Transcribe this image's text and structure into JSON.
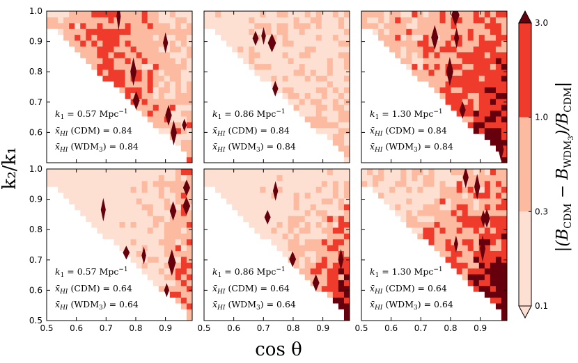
{
  "chart_data": {
    "type": "heatmap",
    "description_units": "cos theta vs k2/k1",
    "xlabel": "cos θ",
    "ylabel": "k₂/k₁",
    "xlim": [
      0.5,
      0.99
    ],
    "ylim": [
      0.5,
      1.0
    ],
    "xticks": [
      "0.5",
      "0.6",
      "0.7",
      "0.8",
      "0.9"
    ],
    "xtick_values": [
      0.5,
      0.6,
      0.7,
      0.8,
      0.9
    ],
    "yticks": [
      "0.5",
      "0.6",
      "0.7",
      "0.8",
      "0.9",
      "1.0"
    ],
    "ytick_values": [
      0.5,
      0.6,
      0.7,
      0.8,
      0.9,
      1.0
    ],
    "colorbar": {
      "label": "|(B_CDM − B_WDM₃)/B_CDM|",
      "label_main": "|(B",
      "label_sub1": "CDM",
      "label_mid": " − B",
      "label_sub2": "WDM",
      "label_sub3": "3",
      "label_end": ")/B",
      "label_sub4": "CDM",
      "label_close": "|",
      "tick_labels": [
        "0.1",
        "0.3",
        "1.0",
        "3.0"
      ],
      "levels": [
        0.1,
        0.3,
        1.0,
        3.0
      ],
      "colors": [
        "#fee0d2",
        "#fcbba1",
        "#ef3b2c",
        "#67000d"
      ],
      "extend": "both"
    },
    "panels": [
      {
        "row": 0,
        "col": 0,
        "k1": "0.57",
        "xHI_CDM": "0.84",
        "xHI_WDM3": "0.84"
      },
      {
        "row": 0,
        "col": 1,
        "k1": "0.86",
        "xHI_CDM": "0.84",
        "xHI_WDM3": "0.84"
      },
      {
        "row": 0,
        "col": 2,
        "k1": "1.30",
        "xHI_CDM": "0.84",
        "xHI_WDM3": "0.84"
      },
      {
        "row": 1,
        "col": 0,
        "k1": "0.57",
        "xHI_CDM": "0.64",
        "xHI_WDM3": "0.64"
      },
      {
        "row": 1,
        "col": 1,
        "k1": "0.86",
        "xHI_CDM": "0.64",
        "xHI_WDM3": "0.64"
      },
      {
        "row": 1,
        "col": 2,
        "k1": "1.30",
        "xHI_CDM": "0.64",
        "xHI_WDM3": "0.64"
      }
    ],
    "annotation_text": {
      "k1_prefix": "k",
      "k1_sub": "1",
      "k1_unit": "Mpc",
      "k1_unit_exp": "−1",
      "xhi_symbol": "x̄",
      "xhi_sub": "HI",
      "cdm_label": "(CDM)",
      "wdm_label_open": "(WDM",
      "wdm_sub": "3",
      "wdm_label_close": ")"
    }
  }
}
